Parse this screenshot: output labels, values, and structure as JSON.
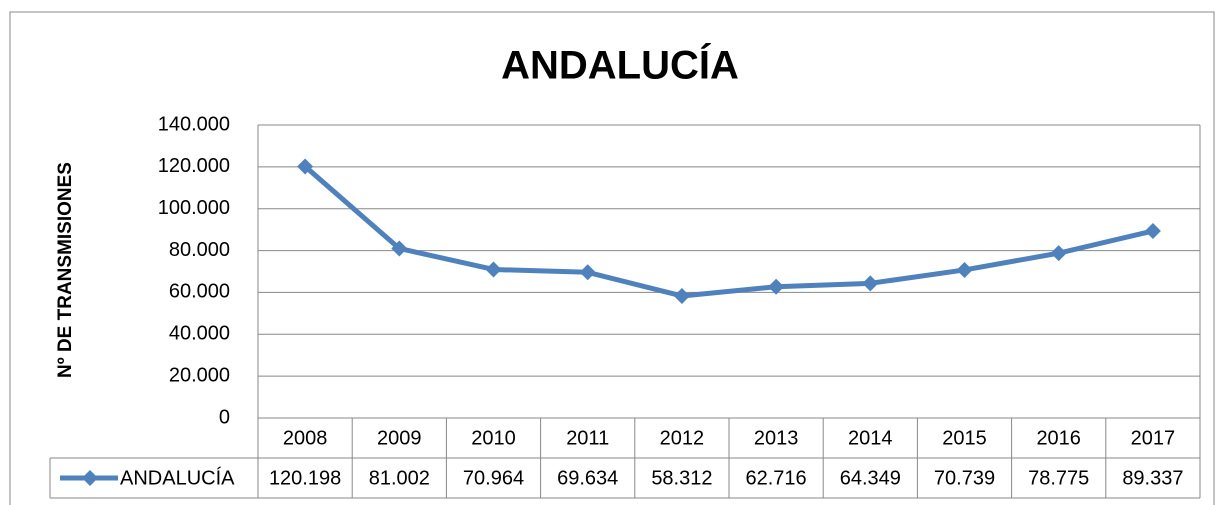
{
  "chart_data": {
    "type": "line",
    "title": "ANDALUCÍA",
    "y_label": "Nº DE TRANSMISIONES",
    "categories": [
      "2008",
      "2009",
      "2010",
      "2011",
      "2012",
      "2013",
      "2014",
      "2015",
      "2016",
      "2017"
    ],
    "series": [
      {
        "name": "ANDALUCÍA",
        "color": "#4f81bd",
        "values": [
          120198,
          81002,
          70964,
          69634,
          58312,
          62716,
          64349,
          70739,
          78775,
          89337
        ],
        "value_labels": [
          "120.198",
          "81.002",
          "70.964",
          "69.634",
          "58.312",
          "62.716",
          "64.349",
          "70.739",
          "78.775",
          "89.337"
        ]
      }
    ],
    "ylim": [
      0,
      140000
    ],
    "yticks": [
      0,
      {
        "value": 20000,
        "label": "20.000"
      },
      {
        "value": 40000,
        "label": "40.000"
      },
      {
        "value": 60000,
        "label": "60.000"
      },
      {
        "value": 80000,
        "label": "80.000"
      },
      {
        "value": 100000,
        "label": "100.000"
      },
      {
        "value": 120000,
        "label": "120.000"
      },
      {
        "value": 140000,
        "label": "140.000"
      }
    ],
    "grid": true
  }
}
